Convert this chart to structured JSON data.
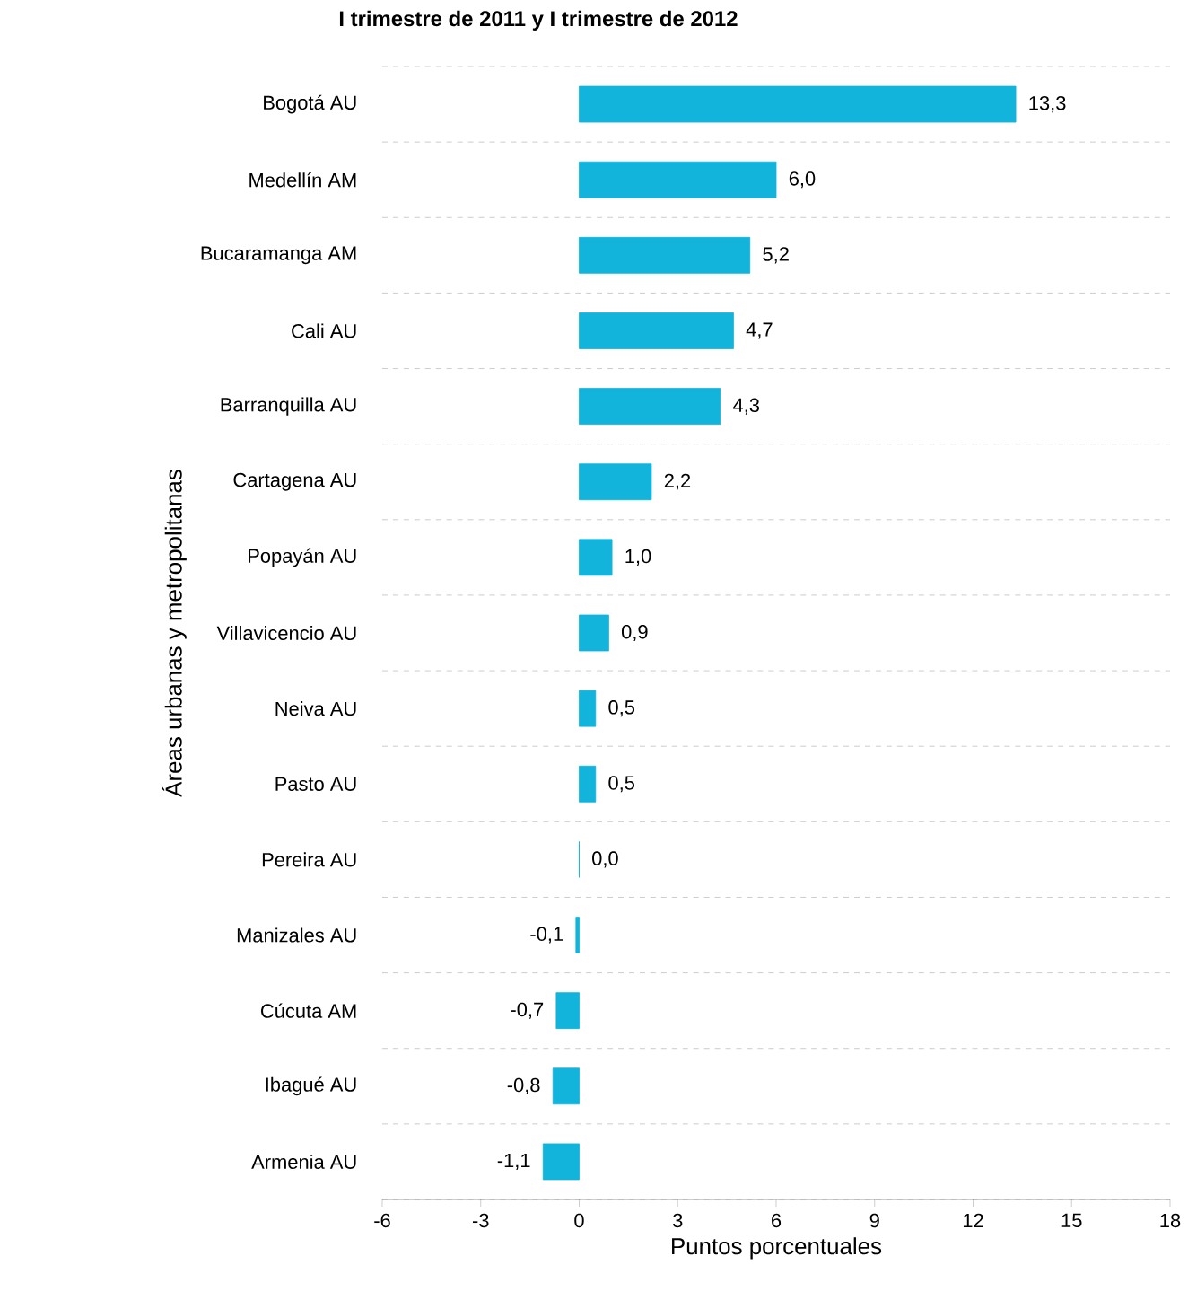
{
  "chart_data": {
    "type": "bar",
    "orientation": "horizontal",
    "title": "I trimestre de 2011 y I trimestre de 2012",
    "categories": [
      "Bogotá AU",
      "Medellín AM",
      "Bucaramanga AM",
      "Cali AU",
      "Barranquilla AU",
      "Cartagena AU",
      "Popayán AU",
      "Villavicencio AU",
      "Neiva AU",
      "Pasto AU",
      "Pereira AU",
      "Manizales AU",
      "Cúcuta AM",
      "Ibagué AU",
      "Armenia AU"
    ],
    "values": [
      13.3,
      6.0,
      5.2,
      4.7,
      4.3,
      2.2,
      1.0,
      0.9,
      0.5,
      0.5,
      0.0,
      -0.1,
      -0.7,
      -0.8,
      -1.1
    ],
    "value_labels": [
      "13,3",
      "6,0",
      "5,2",
      "4,7",
      "4,3",
      "2,2",
      "1,0",
      "0,9",
      "0,5",
      "0,5",
      "0,0",
      "-0,1",
      "-0,7",
      "-0,8",
      "-1,1"
    ],
    "color": "#12b4dc",
    "xlim": [
      -6,
      18
    ],
    "xticks": [
      -6,
      -3,
      0,
      3,
      6,
      9,
      12,
      15,
      18
    ],
    "xlabel": "Puntos porcentuales",
    "ylabel": "Áreas urbanas y metropolitanas",
    "grid": "y"
  }
}
